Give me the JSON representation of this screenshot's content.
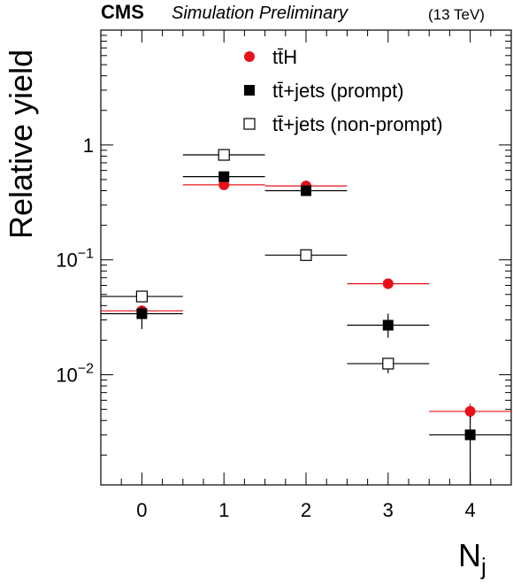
{
  "header": {
    "experiment": "CMS",
    "subtitle": "Simulation Preliminary",
    "energy": "(13 TeV)"
  },
  "colors": {
    "tth": "#e8101a",
    "prompt": "#000000",
    "nonprompt": "#000000"
  },
  "chart_data": {
    "type": "scatter",
    "xlabel": "N",
    "xlabel_sub": "j",
    "ylabel": "Relative yield",
    "xlim": [
      -0.5,
      4.5
    ],
    "ylim": [
      0.0011,
      10
    ],
    "yscale": "log",
    "x_ticks": [
      0,
      1,
      2,
      3,
      4
    ],
    "x_tick_labels": [
      "0",
      "1",
      "2",
      "3",
      "4"
    ],
    "y_tick_labels": [
      {
        "value": 1,
        "base": "1",
        "exp": ""
      },
      {
        "value": 0.1,
        "base": "10",
        "exp": "−1"
      },
      {
        "value": 0.01,
        "base": "10",
        "exp": "−2"
      }
    ],
    "legend_position": "top-center",
    "series": [
      {
        "name": "tt̄H",
        "marker": "circle",
        "x": [
          0,
          1,
          2,
          3,
          4
        ],
        "y": [
          0.036,
          0.45,
          0.44,
          0.062,
          0.0048
        ],
        "yerr_low": [
          0.002,
          0.01,
          0.01,
          0.003,
          0.0007
        ],
        "yerr_high": [
          0.002,
          0.01,
          0.01,
          0.003,
          0.0008
        ]
      },
      {
        "name": "tt̄+jets (prompt)",
        "marker": "square-filled",
        "x": [
          0,
          1,
          2,
          3,
          4
        ],
        "y": [
          0.034,
          0.53,
          0.4,
          0.027,
          0.003
        ],
        "yerr_low": [
          0.009,
          0.02,
          0.02,
          0.006,
          0.0019
        ],
        "yerr_high": [
          0.005,
          0.02,
          0.02,
          0.007,
          0.0014
        ]
      },
      {
        "name": "tt̄+jets (non-prompt)",
        "marker": "square-open",
        "x": [
          0,
          1,
          2,
          3,
          4
        ],
        "y": [
          0.048,
          0.82,
          0.11,
          0.0125,
          null
        ],
        "yerr_low": [
          0.002,
          0.02,
          0.004,
          0.0022,
          null
        ],
        "yerr_high": [
          0.002,
          0.02,
          0.004,
          0.0008,
          null
        ]
      }
    ]
  }
}
